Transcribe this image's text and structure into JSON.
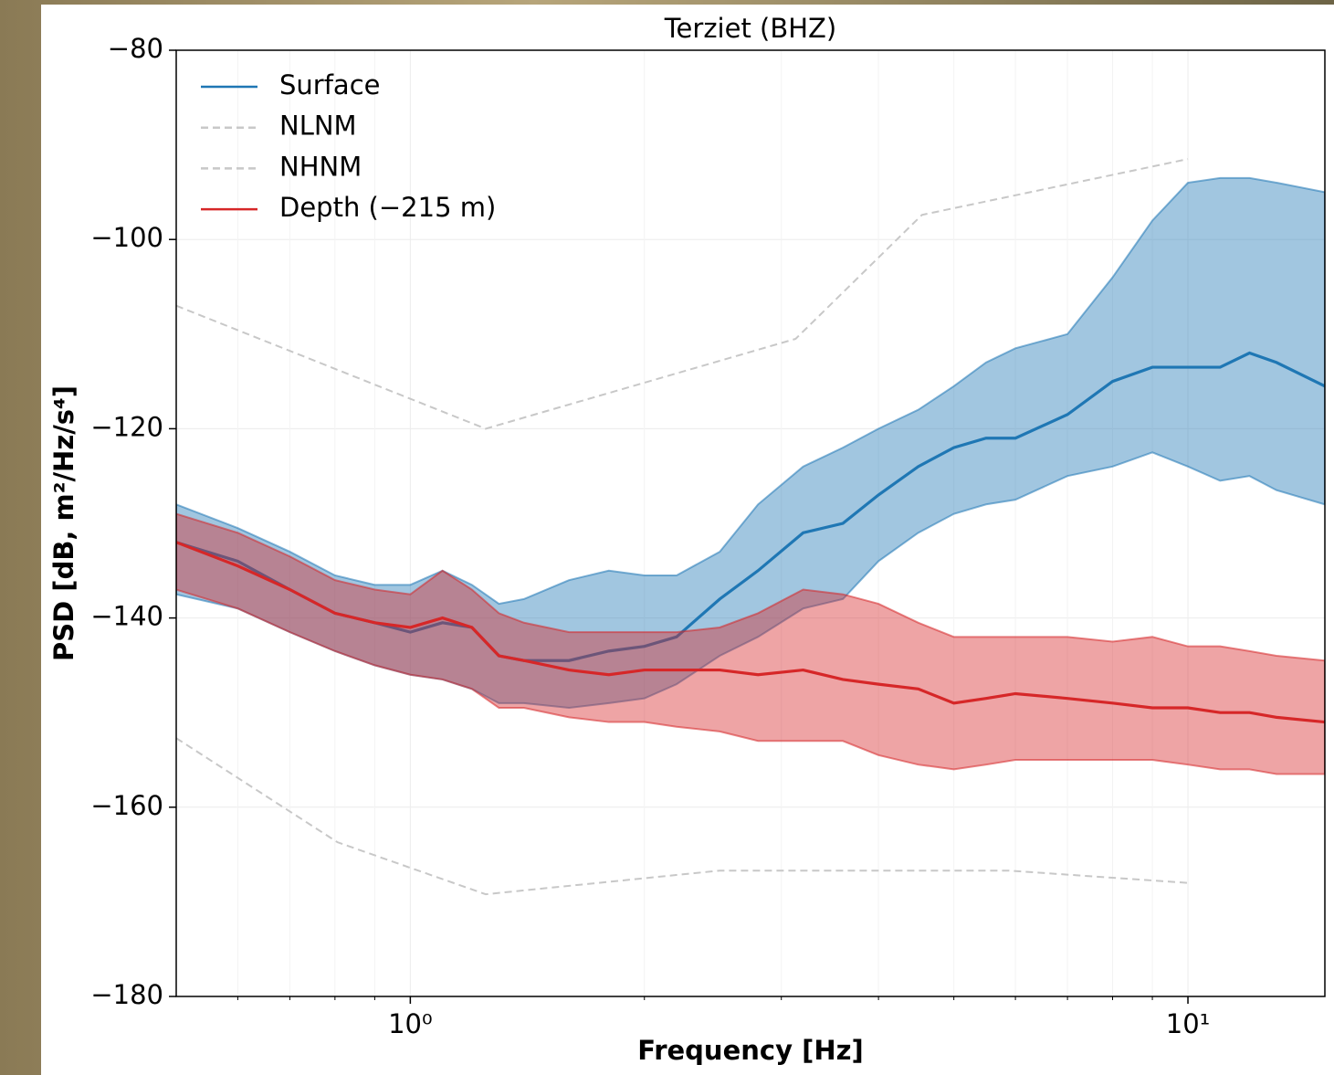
{
  "chart_data": {
    "type": "line",
    "title": "Terziet (BHZ)",
    "x_label": "Frequency [Hz]",
    "y_label": "PSD [dB, m²/Hz/s⁴]",
    "xscale": "log",
    "xlim": [
      0.5,
      15
    ],
    "ylim": [
      -180,
      -80
    ],
    "xticks": [
      {
        "value": 1,
        "label": "10⁰"
      },
      {
        "value": 10,
        "label": "10¹"
      }
    ],
    "xminorticks": [
      0.6,
      0.7,
      0.8,
      0.9,
      2,
      3,
      4,
      5,
      6,
      7,
      8,
      9
    ],
    "yticks": [
      {
        "value": -80,
        "label": "−80"
      },
      {
        "value": -100,
        "label": "−100"
      },
      {
        "value": -120,
        "label": "−120"
      },
      {
        "value": -140,
        "label": "−140"
      },
      {
        "value": -160,
        "label": "−160"
      },
      {
        "value": -180,
        "label": "−180"
      }
    ],
    "grid": true,
    "legend": "upper left",
    "series": [
      {
        "name": "Surface",
        "color": "#1f77b4",
        "linestyle": "solid",
        "x": [
          0.5,
          0.6,
          0.7,
          0.8,
          0.9,
          1.0,
          1.1,
          1.2,
          1.3,
          1.4,
          1.6,
          1.8,
          2.0,
          2.2,
          2.5,
          2.8,
          3.2,
          3.6,
          4.0,
          4.5,
          5.0,
          5.5,
          6.0,
          7.0,
          8.0,
          9.0,
          10,
          11,
          12,
          13,
          15
        ],
        "values": [
          -132,
          -134,
          -137,
          -139.5,
          -140.5,
          -141.5,
          -140.5,
          -141,
          -144,
          -144.5,
          -144.5,
          -143.5,
          -143,
          -142,
          -138,
          -135,
          -131,
          -130,
          -127,
          -124,
          -122,
          -121,
          -121,
          -118.5,
          -115,
          -113.5,
          -113.5,
          -113.5,
          -112,
          -113,
          -115.5
        ],
        "upper": [
          -128,
          -130.5,
          -133,
          -135.5,
          -136.5,
          -136.5,
          -135,
          -136.5,
          -138.5,
          -138,
          -136,
          -135,
          -135.5,
          -135.5,
          -133,
          -128,
          -124,
          -122,
          -120,
          -118,
          -115.5,
          -113,
          -111.5,
          -110,
          -104,
          -98,
          -94,
          -93.5,
          -93.5,
          -94,
          -95
        ],
        "lower": [
          -137.5,
          -139,
          -141.5,
          -143.5,
          -145,
          -146,
          -146.5,
          -147.5,
          -149,
          -149,
          -149.5,
          -149,
          -148.5,
          -147,
          -144,
          -142,
          -139,
          -138,
          -134,
          -131,
          -129,
          -128,
          -127.5,
          -125,
          -124,
          -122.5,
          -124,
          -125.5,
          -125,
          -126.5,
          -128
        ]
      },
      {
        "name": "NLNM",
        "color": "#c8c8c8",
        "linestyle": "dashed",
        "x": [
          0.5,
          0.806,
          1.25,
          2.5,
          5.88,
          10
        ],
        "values": [
          -152.7,
          -163.7,
          -169.2,
          -166.7,
          -166.7,
          -168.0
        ]
      },
      {
        "name": "NHNM",
        "color": "#c8c8c8",
        "linestyle": "dashed",
        "x": [
          0.5,
          1.25,
          3.13,
          4.55,
          10
        ],
        "values": [
          -107,
          -120,
          -110.5,
          -97.4,
          -91.5
        ]
      },
      {
        "name": "Depth (−215 m)",
        "color": "#d62728",
        "linestyle": "solid",
        "x": [
          0.5,
          0.6,
          0.7,
          0.8,
          0.9,
          1.0,
          1.1,
          1.2,
          1.3,
          1.4,
          1.6,
          1.8,
          2.0,
          2.2,
          2.5,
          2.8,
          3.2,
          3.6,
          4.0,
          4.5,
          5.0,
          5.5,
          6.0,
          7.0,
          8.0,
          9.0,
          10,
          11,
          12,
          13,
          15
        ],
        "values": [
          -132,
          -134.5,
          -137,
          -139.5,
          -140.5,
          -141,
          -140,
          -141,
          -144,
          -144.5,
          -145.5,
          -146,
          -145.5,
          -145.5,
          -145.5,
          -146,
          -145.5,
          -146.5,
          -147,
          -147.5,
          -149,
          -148.5,
          -148,
          -148.5,
          -149,
          -149.5,
          -149.5,
          -150,
          -150,
          -150.5,
          -151
        ],
        "upper": [
          -129,
          -131,
          -133.5,
          -136,
          -137,
          -137.5,
          -135,
          -137,
          -139.5,
          -140.5,
          -141.5,
          -141.5,
          -141.5,
          -141.5,
          -141,
          -139.5,
          -137,
          -137.5,
          -138.5,
          -140.5,
          -142,
          -142,
          -142,
          -142,
          -142.5,
          -142,
          -143,
          -143,
          -143.5,
          -144,
          -144.5
        ],
        "lower": [
          -137,
          -139,
          -141.5,
          -143.5,
          -145,
          -146,
          -146.5,
          -147.5,
          -149.5,
          -149.5,
          -150.5,
          -151,
          -151,
          -151.5,
          -152,
          -153,
          -153,
          -153,
          -154.5,
          -155.5,
          -156,
          -155.5,
          -155,
          -155,
          -155,
          -155,
          -155.5,
          -156,
          -156,
          -156.5,
          -156.5
        ]
      }
    ]
  }
}
